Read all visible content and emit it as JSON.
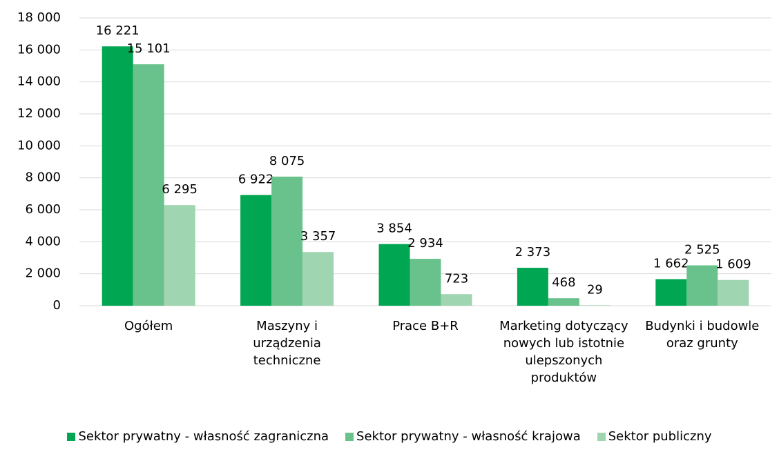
{
  "chart_data": {
    "type": "bar",
    "categories": [
      "Ogółem",
      "Maszyny i urządzenia techniczne",
      "Prace B+R",
      "Marketing dotyczący nowych lub istotnie ulepszonych produktów",
      "Budynki i budowle oraz grunty"
    ],
    "series": [
      {
        "name": "Sektor prywatny - własność zagraniczna",
        "color": "#00a651",
        "values": [
          16221,
          6922,
          3854,
          2373,
          1662
        ],
        "value_labels": [
          "16 221",
          "6 922",
          "3 854",
          "2 373",
          "1 662"
        ]
      },
      {
        "name": "Sektor prywatny - własność krajowa",
        "color": "#69c28c",
        "values": [
          15101,
          8075,
          2934,
          468,
          2525
        ],
        "value_labels": [
          "15 101",
          "8 075",
          "2 934",
          "468",
          "2 525"
        ]
      },
      {
        "name": "Sektor publiczny",
        "color": "#9fd5b0",
        "values": [
          6295,
          3357,
          723,
          29,
          1609
        ],
        "value_labels": [
          "6 295",
          "3 357",
          "723",
          "29",
          "1 609"
        ]
      }
    ],
    "ylim": [
      0,
      18000
    ],
    "yticks": [
      0,
      {
        "value": 2000,
        "label": "2 000"
      },
      {
        "value": 4000,
        "label": "4 000"
      },
      {
        "value": 6000,
        "label": "6 000"
      },
      {
        "value": 8000,
        "label": "8 000"
      },
      {
        "value": 10000,
        "label": "10 000"
      },
      {
        "value": 12000,
        "label": "12 000"
      },
      {
        "value": 14000,
        "label": "14 000"
      },
      {
        "value": 16000,
        "label": "16 000"
      },
      {
        "value": 18000,
        "label": "18 000"
      }
    ],
    "grid": true,
    "legend": "bottom"
  }
}
